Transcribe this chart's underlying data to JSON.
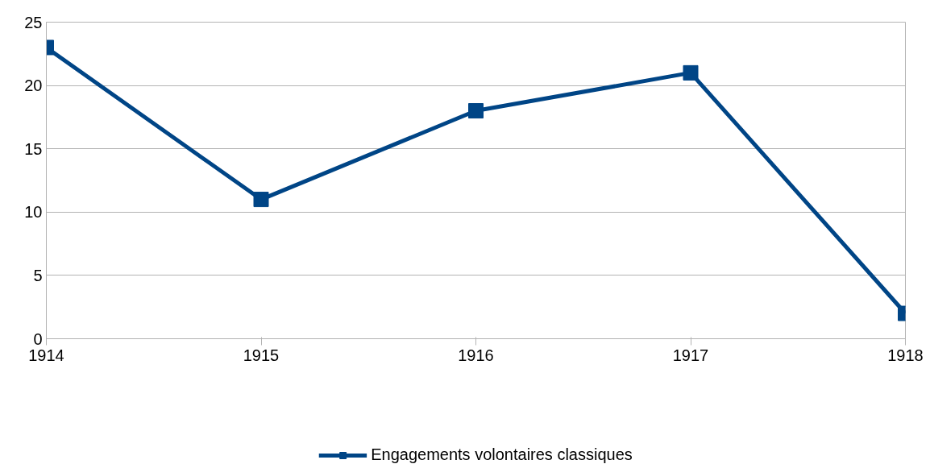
{
  "chart_data": {
    "type": "line",
    "categories": [
      "1914",
      "1915",
      "1916",
      "1917",
      "1918"
    ],
    "series": [
      {
        "name": "Engagements volontaires classiques",
        "color": "#004586",
        "values": [
          23,
          11,
          18,
          21,
          2
        ]
      }
    ],
    "ylim": [
      0,
      25
    ],
    "yticks": [
      0,
      5,
      10,
      15,
      20,
      25
    ],
    "grid": "y",
    "legend": "bottom",
    "marker": "square",
    "line_style": "solid"
  }
}
